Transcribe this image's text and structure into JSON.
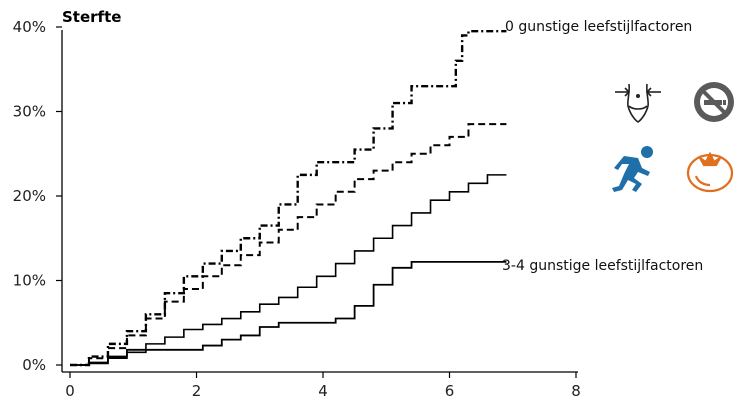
{
  "chart_data": {
    "type": "line",
    "ylabel": "Sterfte",
    "xlabel": "",
    "xlim": [
      0,
      8
    ],
    "ylim": [
      0,
      40
    ],
    "x_ticks": [
      0,
      2,
      4,
      6,
      8
    ],
    "y_ticks": [
      0,
      10,
      20,
      30,
      40
    ],
    "y_tick_labels": [
      "0%",
      "10%",
      "20%",
      "30%",
      "40%"
    ],
    "grid": false,
    "series": [
      {
        "name": "0 gunstige leefstijlfactoren",
        "style": "dash-dot",
        "x": [
          0,
          0.3,
          0.6,
          0.9,
          1.2,
          1.5,
          1.8,
          2.1,
          2.4,
          2.7,
          3.0,
          3.3,
          3.6,
          3.9,
          4.2,
          4.5,
          4.8,
          5.1,
          5.4,
          5.7,
          5.9,
          6.1,
          6.2,
          6.3,
          6.6,
          6.9
        ],
        "y": [
          0,
          1.0,
          2.5,
          4.0,
          6.0,
          8.5,
          10.5,
          12.0,
          13.5,
          15.0,
          16.5,
          19.0,
          22.5,
          24.0,
          24.0,
          25.5,
          28.0,
          31.0,
          33.0,
          33.0,
          33.0,
          36.0,
          39.0,
          39.5,
          39.5,
          39.5
        ]
      },
      {
        "name": "",
        "style": "dashed",
        "x": [
          0,
          0.3,
          0.6,
          0.9,
          1.2,
          1.5,
          1.8,
          2.1,
          2.4,
          2.7,
          3.0,
          3.3,
          3.6,
          3.9,
          4.2,
          4.5,
          4.8,
          5.1,
          5.4,
          5.7,
          6.0,
          6.3,
          6.6,
          6.9
        ],
        "y": [
          0,
          0.8,
          2.0,
          3.5,
          5.5,
          7.5,
          9.0,
          10.5,
          11.8,
          13.0,
          14.5,
          16.0,
          17.5,
          19.0,
          20.5,
          22.0,
          23.0,
          24.0,
          25.0,
          26.0,
          27.0,
          28.5,
          28.5,
          28.5
        ]
      },
      {
        "name": "",
        "style": "solid",
        "x": [
          0,
          0.3,
          0.6,
          0.9,
          1.2,
          1.5,
          1.8,
          2.1,
          2.4,
          2.7,
          3.0,
          3.3,
          3.6,
          3.9,
          4.2,
          4.5,
          4.8,
          5.1,
          5.4,
          5.7,
          6.0,
          6.3,
          6.6,
          6.9
        ],
        "y": [
          0,
          0.3,
          0.8,
          1.5,
          2.5,
          3.3,
          4.2,
          4.8,
          5.5,
          6.3,
          7.2,
          8.0,
          9.2,
          10.5,
          12.0,
          13.5,
          15.0,
          16.5,
          18.0,
          19.5,
          20.5,
          21.5,
          22.5,
          22.5
        ]
      },
      {
        "name": "3-4 gunstige leefstijlfactoren",
        "style": "solid",
        "x": [
          0,
          0.3,
          0.6,
          0.9,
          1.2,
          1.5,
          1.8,
          2.1,
          2.4,
          2.7,
          3.0,
          3.3,
          3.6,
          3.9,
          4.2,
          4.5,
          4.8,
          5.1,
          5.4,
          5.7,
          6.0,
          6.3,
          6.6,
          6.9
        ],
        "y": [
          0,
          0.2,
          1.0,
          1.8,
          1.8,
          1.8,
          1.8,
          2.3,
          3.0,
          3.5,
          4.5,
          5.0,
          5.0,
          5.0,
          5.5,
          7.0,
          9.5,
          11.5,
          12.2,
          12.2,
          12.2,
          12.2,
          12.2,
          12.2
        ]
      }
    ]
  },
  "icons": {
    "waist": {
      "name": "waist-icon",
      "color": "#222222"
    },
    "no_smoking": {
      "name": "no-smoking-icon",
      "color": "#555555"
    },
    "runner": {
      "name": "runner-icon",
      "color": "#1f6fa8"
    },
    "tomato": {
      "name": "tomato-icon",
      "color": "#e07020"
    }
  }
}
